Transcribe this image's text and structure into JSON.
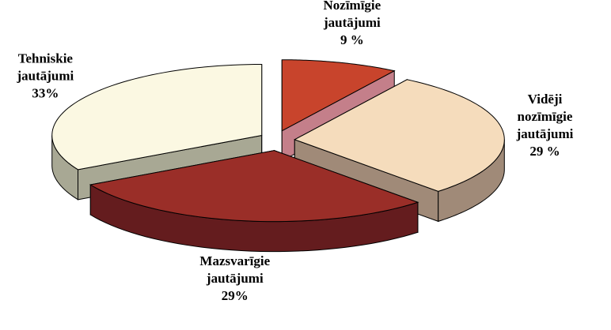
{
  "chart_data": {
    "type": "pie3d",
    "categories": [
      "Nozīmīgie jautājumi",
      "Vidēji nozīmīgie jautājumi",
      "Mazsvarīgie jautājumi",
      "Tehniskie jautājumi"
    ],
    "values": [
      9,
      29,
      29,
      33
    ],
    "value_labels": [
      "9 %",
      "29 %",
      "29%",
      "33%"
    ],
    "colors": [
      "#c8442c",
      "#f5dcbc",
      "#9a2e28",
      "#fbf8e2"
    ],
    "side_colors": [
      "#c47f8a",
      "#a08a78",
      "#641c1e",
      "#a8a894"
    ]
  }
}
